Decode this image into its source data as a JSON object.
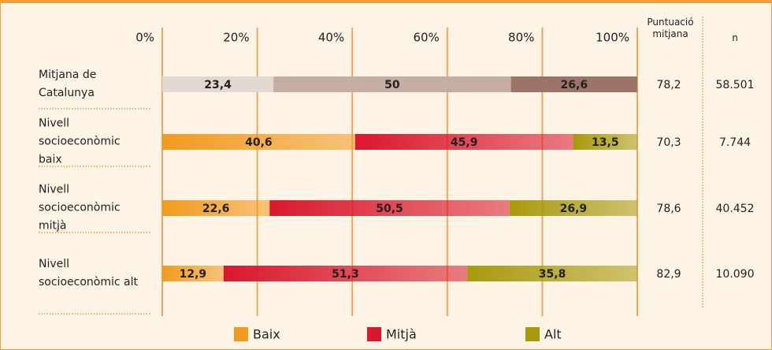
{
  "chart_data": {
    "type": "stacked_bar_horizontal",
    "categories": [
      "Mitjana de Catalunya",
      "Nivell socioeconòmic baix",
      "Nivell socioeconòmic mitjà",
      "Nivell socioeconòmic alt"
    ],
    "series": [
      {
        "name": "Baix",
        "color": "#f29a1e",
        "colors": [
          "#e2d8d2",
          "#f29a1e",
          "#f29a1e",
          "#f29a1e"
        ],
        "values": [
          23.4,
          40.6,
          22.6,
          12.9
        ],
        "value_labels": [
          "23,4",
          "40,6",
          "22,6",
          "12,9"
        ]
      },
      {
        "name": "Mitjà",
        "color": "#d9182d",
        "colors": [
          "#c5ada1",
          "#d9182d",
          "#d9182d",
          "#d9182d"
        ],
        "values": [
          50,
          45.9,
          50.5,
          51.3
        ],
        "value_labels": [
          "50",
          "45,9",
          "50,5",
          "51,3"
        ]
      },
      {
        "name": "Alt",
        "color": "#a89a0c",
        "colors": [
          "#9a7466",
          "#a89a0c",
          "#a89a0c",
          "#a89a0c"
        ],
        "values": [
          26.6,
          13.5,
          26.9,
          35.8
        ],
        "value_labels": [
          "26,6",
          "13,5",
          "26,9",
          "35,8"
        ]
      }
    ],
    "xlim": [
      0,
      100
    ],
    "xticks": [
      {
        "value": 0,
        "label": "0%"
      },
      {
        "value": 20,
        "label": "20%"
      },
      {
        "value": 40,
        "label": "40%"
      },
      {
        "value": 60,
        "label": "60%"
      },
      {
        "value": 80,
        "label": "80%"
      },
      {
        "value": 100,
        "label": "100%"
      }
    ],
    "grid": true,
    "columns": [
      {
        "header": "Puntuació mitjana",
        "values": [
          "78,2",
          "70,3",
          "78,6",
          "82,9"
        ]
      },
      {
        "header": "n",
        "values": [
          "58.501",
          "7.744",
          "40.452",
          "10.090"
        ]
      }
    ]
  }
}
